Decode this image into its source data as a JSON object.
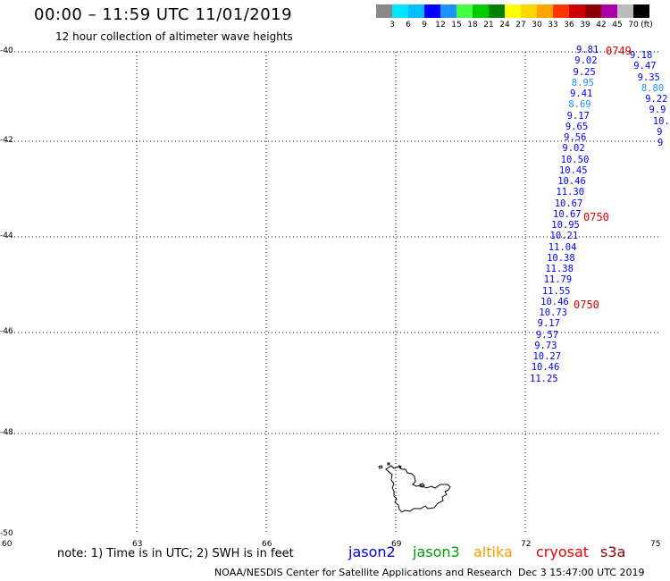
{
  "title": "00:00 – 11:59 UTC 11/01/2019",
  "subtitle": "12 hour collection of altimeter wave heights",
  "legend": {
    "unit": "(ft)",
    "colors": [
      "#888888",
      "#00e5ff",
      "#00bfff",
      "#0000ff",
      "#1e90ff",
      "#44ff44",
      "#00cc00",
      "#008000",
      "#ffff00",
      "#ffd700",
      "#ffa500",
      "#ff3300",
      "#cc0000",
      "#880000",
      "#aa00aa",
      "#bbbbbb",
      "#000000"
    ],
    "labels": [
      "3",
      "6",
      "9",
      "12",
      "15",
      "18",
      "21",
      "24",
      "27",
      "30",
      "33",
      "36",
      "39",
      "42",
      "45",
      "70"
    ]
  },
  "y_axis": [
    "-40",
    "-42",
    "-44",
    "-46",
    "-48",
    "-50"
  ],
  "x_axis": [
    "60",
    "63",
    "66",
    "69",
    "72",
    "75"
  ],
  "track_main": [
    {
      "v": "9.81",
      "c": "#0000ff"
    },
    {
      "v": "9.02",
      "c": "#0000ff"
    },
    {
      "v": "9.25",
      "c": "#0000ff"
    },
    {
      "v": "8.95",
      "c": "#1e90ff"
    },
    {
      "v": "9.41",
      "c": "#0000ff"
    },
    {
      "v": "8.69",
      "c": "#1e90ff"
    },
    {
      "v": "9.17",
      "c": "#0000ff"
    },
    {
      "v": "9.65",
      "c": "#0000ff"
    },
    {
      "v": "9.56",
      "c": "#0000ff"
    },
    {
      "v": "9.02",
      "c": "#0000ff"
    },
    {
      "v": "10.50",
      "c": "#0000ff"
    },
    {
      "v": "10.45",
      "c": "#0000ff"
    },
    {
      "v": "10.46",
      "c": "#0000ff"
    },
    {
      "v": "11.30",
      "c": "#0000ff"
    },
    {
      "v": "10.67",
      "c": "#0000ff"
    },
    {
      "v": "10.67",
      "c": "#0000ff"
    },
    {
      "v": "10.95",
      "c": "#0000ff"
    },
    {
      "v": "10.21",
      "c": "#0000ff"
    },
    {
      "v": "11.04",
      "c": "#0000ff"
    },
    {
      "v": "10.38",
      "c": "#0000ff"
    },
    {
      "v": "11.38",
      "c": "#0000ff"
    },
    {
      "v": "11.79",
      "c": "#0000ff"
    },
    {
      "v": "11.55",
      "c": "#0000ff"
    },
    {
      "v": "10.46",
      "c": "#0000ff"
    },
    {
      "v": "10.73",
      "c": "#0000ff"
    },
    {
      "v": "9.17",
      "c": "#0000ff"
    },
    {
      "v": "9.57",
      "c": "#0000ff"
    },
    {
      "v": "9.73",
      "c": "#0000ff"
    },
    {
      "v": "10.27",
      "c": "#0000ff"
    },
    {
      "v": "10.46",
      "c": "#0000ff"
    },
    {
      "v": "11.25",
      "c": "#0000ff"
    }
  ],
  "track_east": [
    {
      "v": "9.18",
      "c": "#0000ff"
    },
    {
      "v": "9.47",
      "c": "#0000ff"
    },
    {
      "v": "9.35",
      "c": "#0000ff"
    },
    {
      "v": "8.80",
      "c": "#1e90ff"
    },
    {
      "v": "9.22",
      "c": "#0000ff"
    },
    {
      "v": "9.9",
      "c": "#0000ff"
    },
    {
      "v": "10.",
      "c": "#0000ff"
    },
    {
      "v": "9",
      "c": "#0000ff"
    },
    {
      "v": "9",
      "c": "#0000ff"
    }
  ],
  "times": [
    "0749",
    "0750",
    "0750"
  ],
  "note": "note: 1) Time is in UTC; 2) SWH is in feet",
  "satellites": [
    {
      "name": "jason2",
      "color": "#0000ee"
    },
    {
      "name": "jason3",
      "color": "#00a000"
    },
    {
      "name": "altika",
      "color": "#ff9900"
    },
    {
      "name": "cryosat",
      "color": "#ee0000"
    },
    {
      "name": "s3a",
      "color": "#880000"
    }
  ],
  "footer": "NOAA/NESDIS Center for Satellite Applications and Research",
  "footer_date": "Dec  3 15:47:00 UTC 2019"
}
